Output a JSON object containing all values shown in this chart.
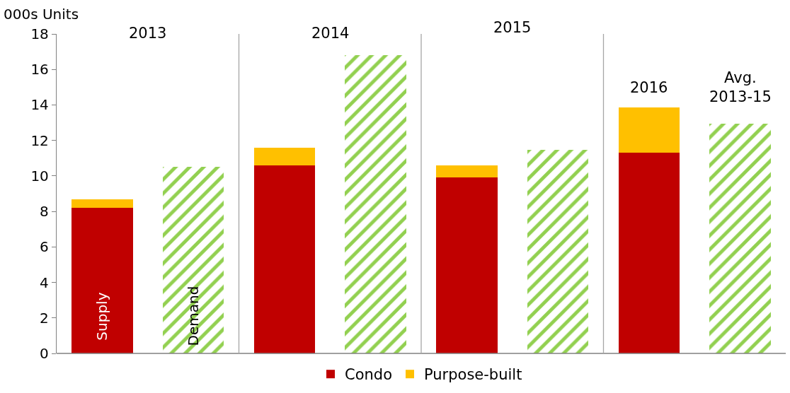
{
  "chart_data": {
    "type": "bar",
    "ylabel": "000s Units",
    "stacked": true,
    "categories": [
      null,
      null,
      null,
      null,
      null,
      null,
      null,
      null
    ],
    "series": [
      {
        "name": "Condo",
        "color": "#c00000",
        "values": [
          8.2,
          null,
          10.6,
          null,
          9.9,
          null,
          11.3,
          null
        ]
      },
      {
        "name": "Purpose-built",
        "color": "#ffc000",
        "values": [
          0.5,
          null,
          1.0,
          null,
          0.7,
          null,
          2.55,
          null
        ]
      },
      {
        "color": "#92d050",
        "values": [
          null,
          10.5,
          null,
          16.8,
          null,
          11.45,
          null,
          12.95
        ]
      }
    ],
    "ylim": [
      0,
      18
    ],
    "yticks": [
      0,
      2,
      4,
      6,
      8,
      10,
      12,
      14,
      16,
      18
    ],
    "grid": false,
    "legend": "bottom",
    "annotations": [
      "2013",
      "2014",
      "2015",
      "2016",
      "Avg.\n2013-15",
      "Supply",
      "Demand"
    ]
  }
}
